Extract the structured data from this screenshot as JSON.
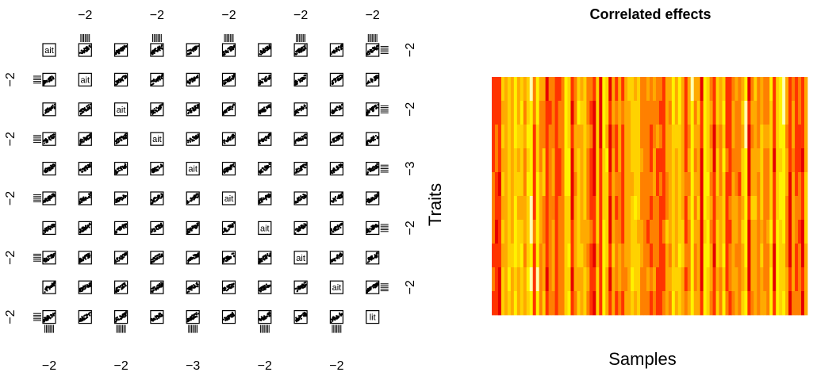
{
  "chart_data": [
    {
      "type": "scatter",
      "description_kind": "pairs-matrix",
      "n_vars": 10,
      "diag_label": "ait",
      "last_diag_label": "lit",
      "top_tick_labels": [
        "−2",
        "−2",
        "−2",
        "−2",
        "−2"
      ],
      "bottom_tick_labels": [
        "−2",
        "−2",
        "−3",
        "−2",
        "−2"
      ],
      "left_tick_labels": [
        "−2",
        "−2",
        "−2",
        "−2",
        "−2"
      ],
      "right_tick_labels": [
        "−2",
        "−2",
        "−3",
        "−2",
        "−2"
      ]
    },
    {
      "type": "heatmap",
      "title": "Correlated effects",
      "xlabel": "Samples",
      "ylabel": "Traits",
      "rows": 10,
      "cols": 100,
      "palette": [
        "#E60000",
        "#FF3300",
        "#FF8000",
        "#FFAA00",
        "#FFD200",
        "#FFF200",
        "#FFFFB0"
      ]
    }
  ]
}
